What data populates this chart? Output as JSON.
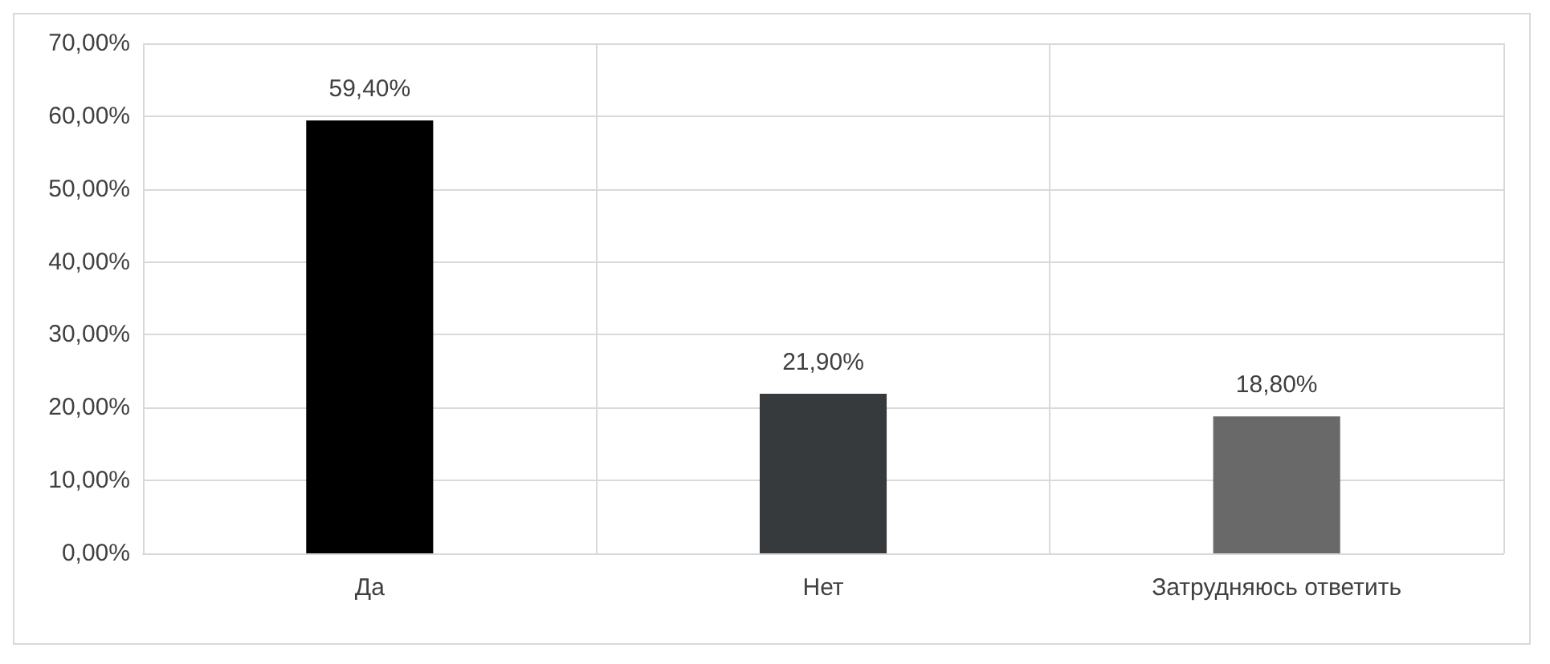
{
  "chart_data": {
    "type": "bar",
    "categories": [
      "Да",
      "Нет",
      "Затрудняюсь ответить"
    ],
    "values": [
      59.4,
      21.9,
      18.8
    ],
    "colors": [
      "#000000",
      "#373a3c",
      "#696969"
    ],
    "value_labels": [
      "59,40%",
      "21,90%",
      "18,80%"
    ],
    "ylim": [
      0,
      70
    ],
    "yticks": [
      {
        "value": 0,
        "label": "0,00%"
      },
      {
        "value": 10,
        "label": "10,00%"
      },
      {
        "value": 20,
        "label": "20,00%"
      },
      {
        "value": 30,
        "label": "30,00%"
      },
      {
        "value": 40,
        "label": "40,00%"
      },
      {
        "value": 50,
        "label": "50,00%"
      },
      {
        "value": 60,
        "label": "60,00%"
      },
      {
        "value": 70,
        "label": "70,00%"
      }
    ],
    "grid": true
  }
}
